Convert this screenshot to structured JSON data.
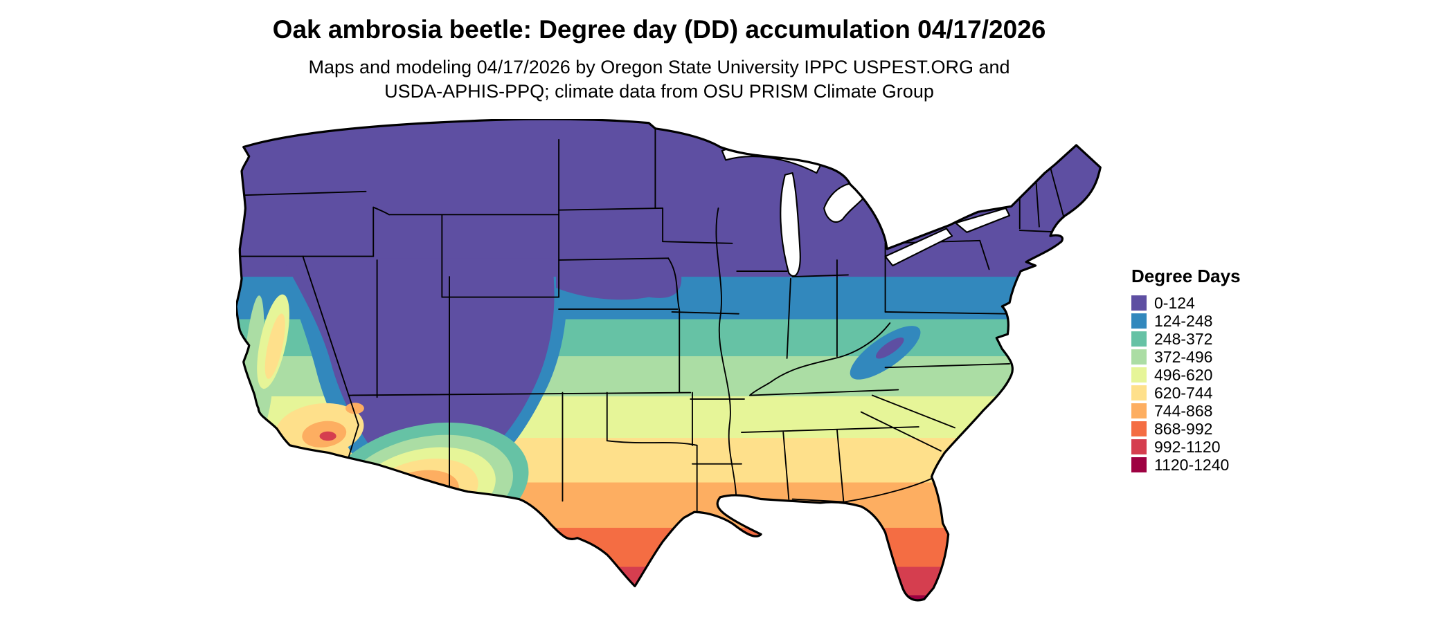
{
  "header": {
    "title": "Oak ambrosia beetle: Degree day (DD) accumulation 04/17/2026",
    "subtitle_line1": "Maps and modeling 04/17/2026 by Oregon State University IPPC USPEST.ORG and",
    "subtitle_line2": "USDA-APHIS-PPQ; climate data from OSU PRISM Climate Group"
  },
  "legend": {
    "title": "Degree Days",
    "bins": [
      {
        "label": "0-124",
        "color": "#5e4fa2"
      },
      {
        "label": "124-248",
        "color": "#3288bd"
      },
      {
        "label": "248-372",
        "color": "#66c2a5"
      },
      {
        "label": "372-496",
        "color": "#abdda4"
      },
      {
        "label": "496-620",
        "color": "#e6f598"
      },
      {
        "label": "620-744",
        "color": "#fee08b"
      },
      {
        "label": "744-868",
        "color": "#fdae61"
      },
      {
        "label": "868-992",
        "color": "#f46d43"
      },
      {
        "label": "992-1120",
        "color": "#d53e4f"
      },
      {
        "label": "1120-1240",
        "color": "#9e0142"
      }
    ]
  }
}
